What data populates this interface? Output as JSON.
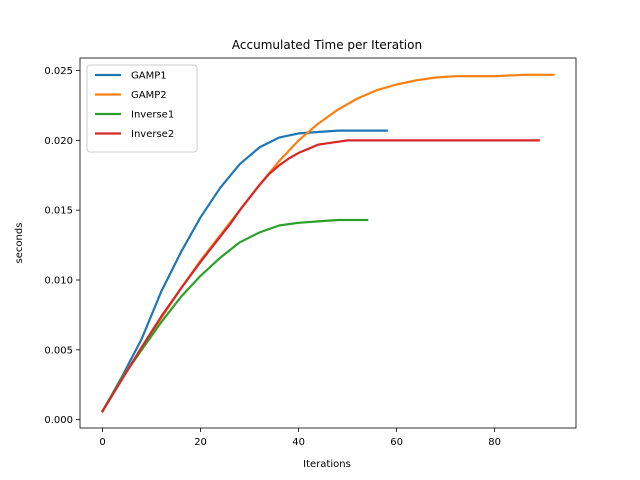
{
  "chart_data": {
    "type": "line",
    "title": "Accumulated Time per Iteration",
    "xlabel": "Iterations",
    "ylabel": "seconds",
    "xlim": [
      -4.6,
      96.6
    ],
    "ylim": [
      -0.0006,
      0.0259
    ],
    "xticks": [
      0,
      20,
      40,
      60,
      80
    ],
    "yticks": [
      0.0,
      0.005,
      0.01,
      0.015,
      0.02,
      0.025
    ],
    "ytick_labels": [
      "0.000",
      "0.005",
      "0.010",
      "0.015",
      "0.020",
      "0.025"
    ],
    "grid": false,
    "legend_position": "top-left",
    "series": [
      {
        "name": "GAMP1",
        "color": "#1f77b4",
        "x": [
          0,
          4,
          8,
          12,
          16,
          20,
          24,
          28,
          32,
          36,
          40,
          44,
          48,
          52,
          58
        ],
        "y": [
          0.0006,
          0.0031,
          0.0058,
          0.0092,
          0.012,
          0.0145,
          0.0166,
          0.0183,
          0.0195,
          0.0202,
          0.0205,
          0.0206,
          0.0207,
          0.0207,
          0.0207
        ]
      },
      {
        "name": "GAMP2",
        "color": "#ff7f0e",
        "x": [
          0,
          4,
          8,
          12,
          16,
          20,
          24,
          28,
          32,
          36,
          40,
          44,
          48,
          52,
          56,
          60,
          64,
          68,
          72,
          76,
          80,
          86,
          92
        ],
        "y": [
          0.0006,
          0.003,
          0.0051,
          0.0073,
          0.0094,
          0.0114,
          0.0132,
          0.015,
          0.0168,
          0.0185,
          0.02,
          0.0212,
          0.0222,
          0.023,
          0.0236,
          0.024,
          0.0243,
          0.0245,
          0.0246,
          0.0246,
          0.0246,
          0.0247,
          0.0247
        ]
      },
      {
        "name": "Inverse1",
        "color": "#2ca02c",
        "x": [
          0,
          4,
          8,
          12,
          16,
          20,
          24,
          28,
          32,
          36,
          40,
          44,
          48,
          54
        ],
        "y": [
          0.0006,
          0.003,
          0.005,
          0.007,
          0.0088,
          0.0103,
          0.0116,
          0.0127,
          0.0134,
          0.0139,
          0.0141,
          0.0142,
          0.0143,
          0.0143
        ]
      },
      {
        "name": "Inverse2",
        "color": "#d62728",
        "x": [
          0,
          4,
          8,
          12,
          16,
          20,
          24,
          26,
          28,
          30,
          32,
          34,
          36,
          38,
          40,
          42,
          44,
          46,
          48,
          50,
          54,
          60,
          70,
          80,
          89
        ],
        "y": [
          0.0006,
          0.0029,
          0.0052,
          0.0074,
          0.0094,
          0.0113,
          0.0131,
          0.014,
          0.015,
          0.0159,
          0.0168,
          0.0176,
          0.0182,
          0.0187,
          0.0191,
          0.0194,
          0.0197,
          0.0198,
          0.0199,
          0.02,
          0.02,
          0.02,
          0.02,
          0.02,
          0.02
        ]
      }
    ]
  }
}
